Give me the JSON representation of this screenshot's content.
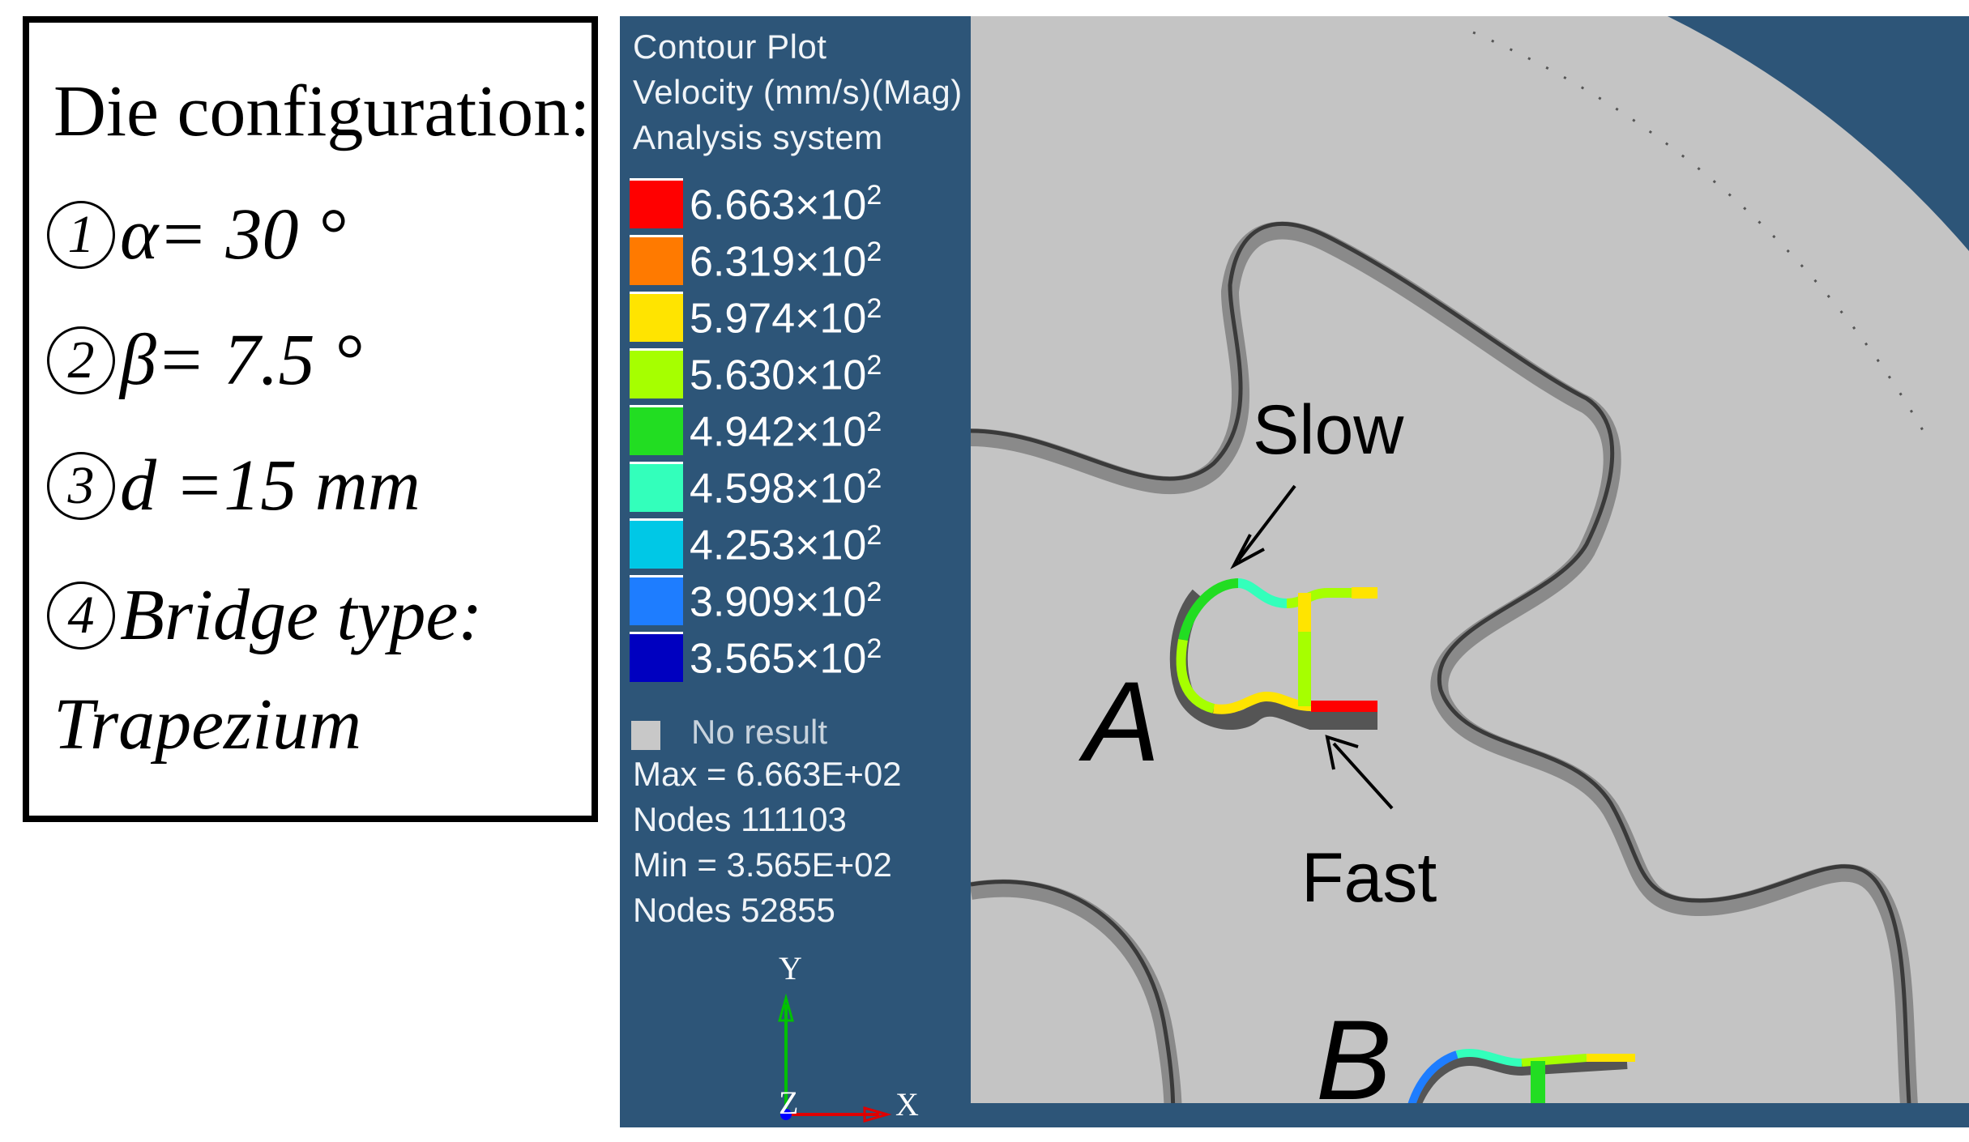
{
  "config": {
    "title": "Die configuration:",
    "items": [
      {
        "num": "1",
        "text": "α= 30 °"
      },
      {
        "num": "2",
        "text": "β= 7.5 °"
      },
      {
        "num": "3",
        "text": "d =15 mm"
      },
      {
        "num": "4",
        "text": "Bridge type:"
      }
    ],
    "bridge_type": "Trapezium"
  },
  "legend": {
    "header": [
      "Contour Plot",
      "Velocity (mm/s)(Mag)",
      "Analysis system"
    ],
    "multiplier": "×10",
    "exponent": "2",
    "levels": [
      {
        "value": "6.663",
        "color": "#ff0000"
      },
      {
        "value": "6.319",
        "color": "#ff7a00"
      },
      {
        "value": "5.974",
        "color": "#ffe400"
      },
      {
        "value": "5.630",
        "color": "#a6ff00"
      },
      {
        "value": "4.942",
        "color": "#22dd22"
      },
      {
        "value": "4.598",
        "color": "#33ffbb"
      },
      {
        "value": "4.253",
        "color": "#00c8e6"
      },
      {
        "value": "3.909",
        "color": "#1e7dff"
      },
      {
        "value": "3.565",
        "color": "#0000c0"
      }
    ],
    "no_result": "No result",
    "max": "Max = 6.663E+02",
    "max_nodes": "Nodes 111103",
    "min": "Min = 3.565E+02",
    "min_nodes": "Nodes 52855",
    "axes": {
      "y": "Y",
      "x": "X",
      "z": "Z"
    }
  },
  "annotations": {
    "slow": "Slow",
    "fast": "Fast",
    "a": "A",
    "b": "B"
  }
}
